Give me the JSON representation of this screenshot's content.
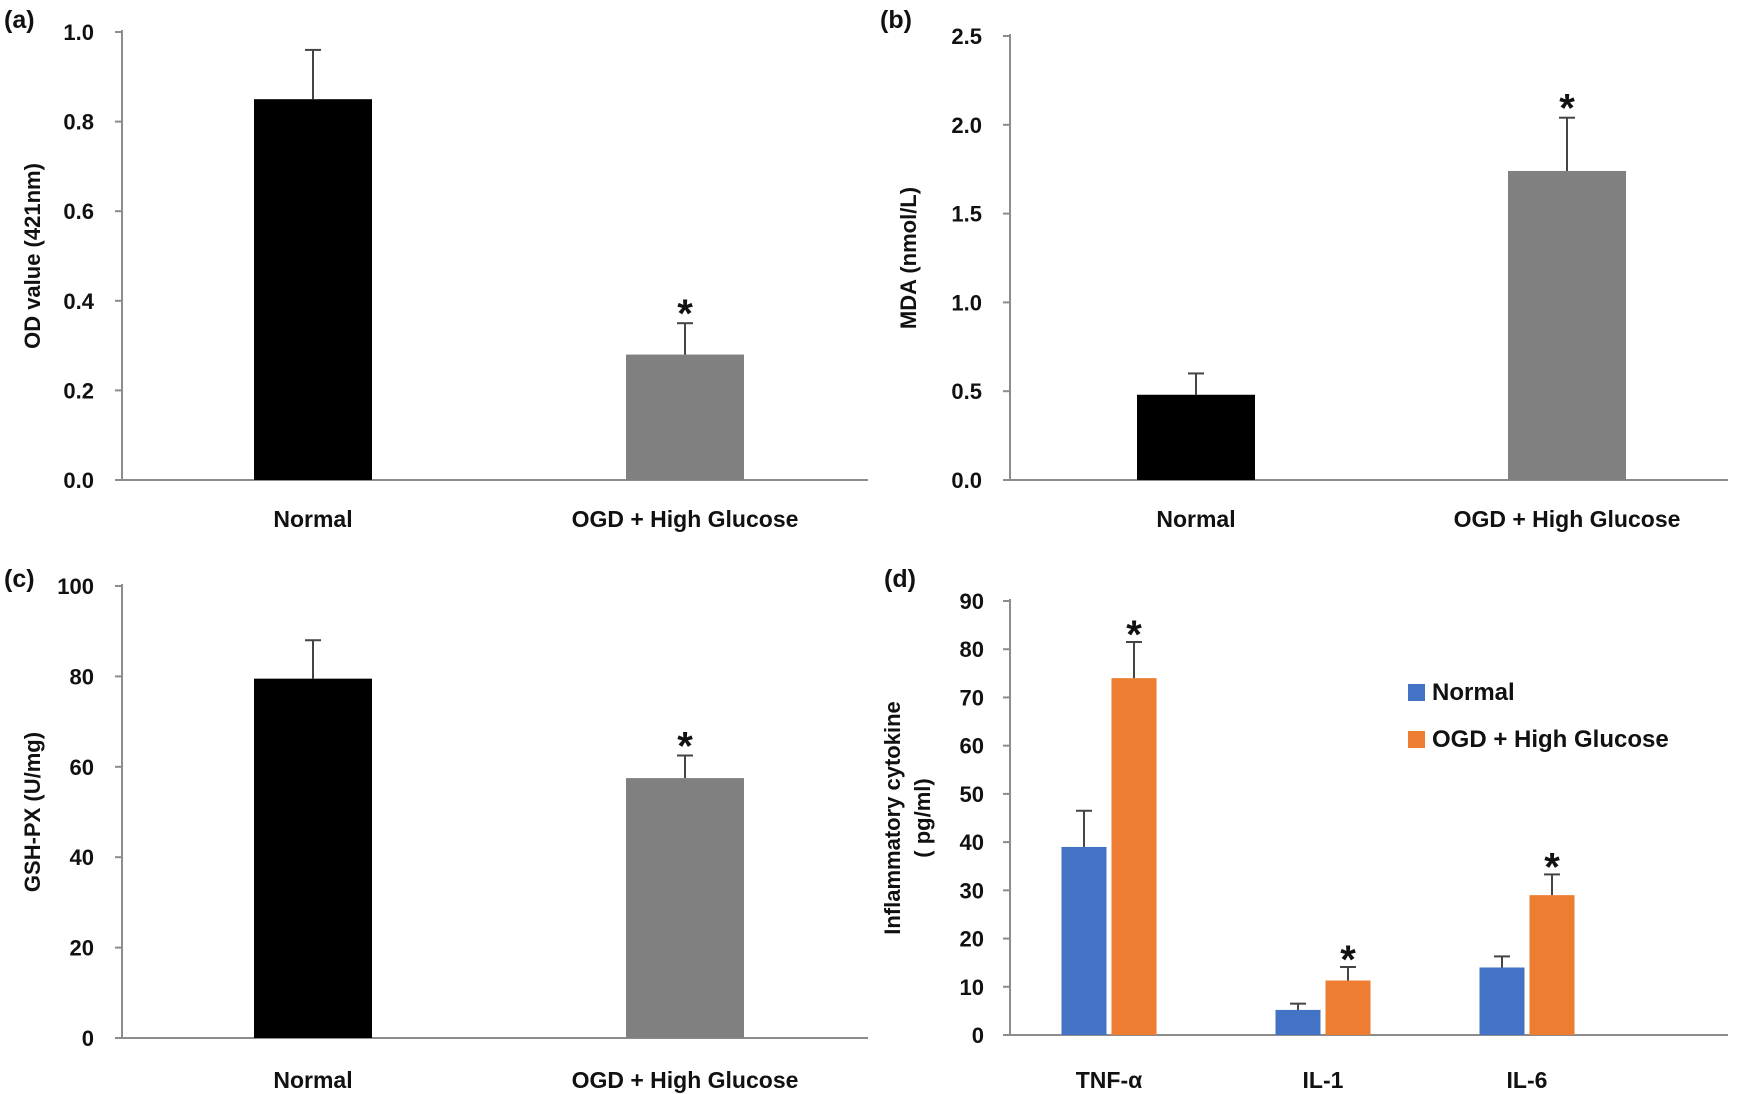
{
  "chart_data": [
    {
      "id": "a",
      "panel_label": "(a)",
      "type": "bar",
      "categories": [
        "Normal",
        "OGD + High Glucose"
      ],
      "values": [
        0.85,
        0.28
      ],
      "errors": [
        0.11,
        0.07
      ],
      "colors": [
        "#000000",
        "#808080"
      ],
      "significance": [
        "",
        "*"
      ],
      "ylabel": "OD value (421nm)",
      "ylim": [
        0,
        1.0
      ],
      "yticks": [
        "0.0",
        "0.2",
        "0.4",
        "0.6",
        "0.8",
        "1.0"
      ]
    },
    {
      "id": "b",
      "panel_label": "(b)",
      "type": "bar",
      "categories": [
        "Normal",
        "OGD + High Glucose"
      ],
      "values": [
        0.48,
        1.74
      ],
      "errors": [
        0.12,
        0.3
      ],
      "colors": [
        "#000000",
        "#808080"
      ],
      "significance": [
        "",
        "*"
      ],
      "ylabel": "MDA (nmol/L)",
      "ylim": [
        0,
        2.5
      ],
      "yticks": [
        "0.0",
        "0.5",
        "1.0",
        "1.5",
        "2.0",
        "2.5"
      ]
    },
    {
      "id": "c",
      "panel_label": "(c)",
      "type": "bar",
      "categories": [
        "Normal",
        "OGD + High Glucose"
      ],
      "values": [
        79.5,
        57.5
      ],
      "errors": [
        8.5,
        5.0
      ],
      "colors": [
        "#000000",
        "#808080"
      ],
      "significance": [
        "",
        "*"
      ],
      "ylabel": "GSH-PX (U/mg)",
      "ylim": [
        0,
        100
      ],
      "yticks": [
        "0",
        "20",
        "40",
        "60",
        "80",
        "100"
      ]
    },
    {
      "id": "d",
      "panel_label": "(d)",
      "type": "bar",
      "categories": [
        "TNF-α",
        "IL-1",
        "IL-6"
      ],
      "series": [
        {
          "name": "Normal",
          "color": "#4472C4",
          "values": [
            39,
            5.2,
            14
          ],
          "errors": [
            7.5,
            1.3,
            2.3
          ],
          "significance": [
            "",
            "",
            ""
          ]
        },
        {
          "name": "OGD + High Glucose",
          "color": "#ED7D31",
          "values": [
            74,
            11.3,
            29
          ],
          "errors": [
            7.5,
            2.8,
            4.3
          ],
          "significance": [
            "*",
            "*",
            "*"
          ]
        }
      ],
      "ylabel": [
        "Inflammatory cytokine",
        "( pg/ml)"
      ],
      "ylim": [
        0,
        90
      ],
      "yticks": [
        "0",
        "10",
        "20",
        "30",
        "40",
        "50",
        "60",
        "70",
        "80",
        "90"
      ],
      "legend_position": "right"
    }
  ]
}
